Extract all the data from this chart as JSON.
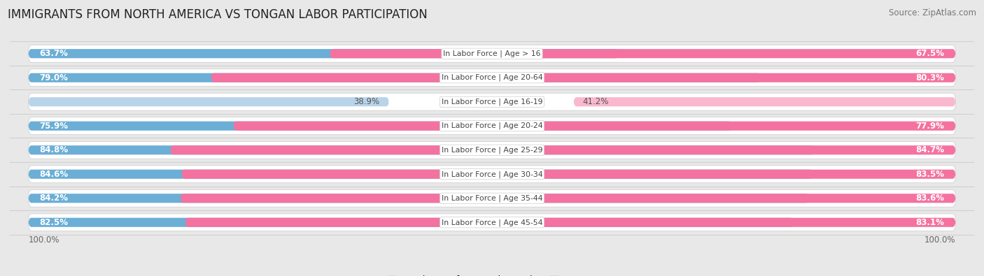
{
  "title": "IMMIGRANTS FROM NORTH AMERICA VS TONGAN LABOR PARTICIPATION",
  "source": "Source: ZipAtlas.com",
  "categories": [
    "In Labor Force | Age > 16",
    "In Labor Force | Age 20-64",
    "In Labor Force | Age 16-19",
    "In Labor Force | Age 20-24",
    "In Labor Force | Age 25-29",
    "In Labor Force | Age 30-34",
    "In Labor Force | Age 35-44",
    "In Labor Force | Age 45-54"
  ],
  "north_america_values": [
    63.7,
    79.0,
    38.9,
    75.9,
    84.8,
    84.6,
    84.2,
    82.5
  ],
  "tongan_values": [
    67.5,
    80.3,
    41.2,
    77.9,
    84.7,
    83.5,
    83.6,
    83.1
  ],
  "north_america_color": "#6baed6",
  "north_america_light_color": "#b8d4eb",
  "tongan_color": "#f472a0",
  "tongan_light_color": "#f9b8ce",
  "background_color": "#e8e8e8",
  "row_bg_color": "#ffffff",
  "row_separator_color": "#d0d0d0",
  "title_fontsize": 12,
  "source_fontsize": 8.5,
  "tick_fontsize": 8.5,
  "label_fontsize": 8.5,
  "cat_fontsize": 7.8
}
